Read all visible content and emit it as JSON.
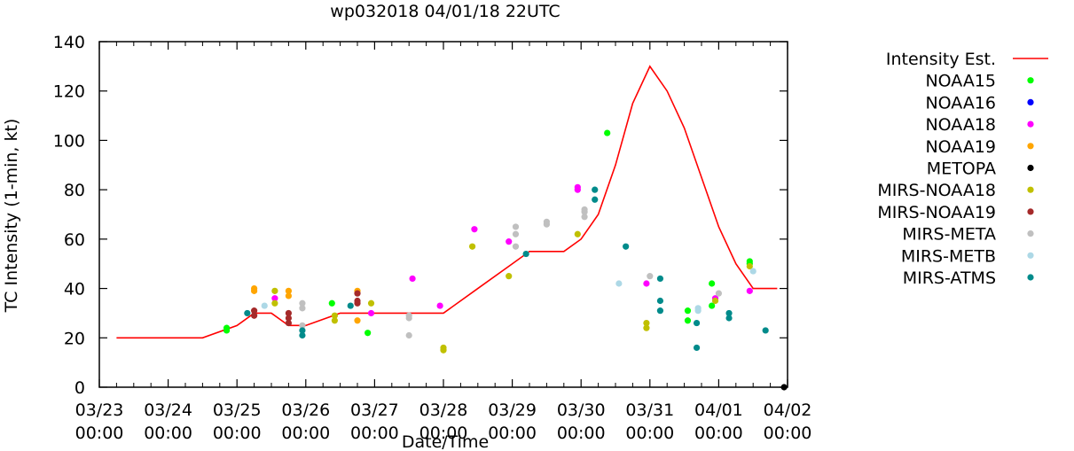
{
  "chart_data": {
    "type": "scatter",
    "title": "wp032018 04/01/18 22UTC",
    "xlabel": "Date/Time",
    "ylabel": "TC Intensity (1-min, kt)",
    "ylim": [
      0,
      140
    ],
    "yticks": [
      0,
      20,
      40,
      60,
      80,
      100,
      120,
      140
    ],
    "xlim": [
      0,
      10
    ],
    "xticks": [
      {
        "x": 0,
        "line1": "03/23",
        "line2": "00:00"
      },
      {
        "x": 1,
        "line1": "03/24",
        "line2": "00:00"
      },
      {
        "x": 2,
        "line1": "03/25",
        "line2": "00:00"
      },
      {
        "x": 3,
        "line1": "03/26",
        "line2": "00:00"
      },
      {
        "x": 4,
        "line1": "03/27",
        "line2": "00:00"
      },
      {
        "x": 5,
        "line1": "03/28",
        "line2": "00:00"
      },
      {
        "x": 6,
        "line1": "03/29",
        "line2": "00:00"
      },
      {
        "x": 7,
        "line1": "03/30",
        "line2": "00:00"
      },
      {
        "x": 8,
        "line1": "03/31",
        "line2": "00:00"
      },
      {
        "x": 9,
        "line1": "04/01",
        "line2": "00:00"
      },
      {
        "x": 10,
        "line1": "04/02",
        "line2": "00:00"
      }
    ],
    "x_unit": "days since 03/23 00:00",
    "intensity_line": {
      "name": "Intensity Est.",
      "color": "#ff0000",
      "x": [
        0.25,
        1.5,
        2.0,
        2.25,
        2.5,
        2.75,
        3.0,
        3.5,
        4.0,
        4.5,
        5.0,
        5.5,
        6.0,
        6.25,
        6.5,
        6.75,
        7.0,
        7.25,
        7.5,
        7.75,
        8.0,
        8.25,
        8.5,
        8.75,
        9.0,
        9.25,
        9.5,
        9.75
      ],
      "y": [
        20,
        20,
        25,
        30,
        30,
        25,
        25,
        30,
        30,
        30,
        30,
        40,
        50,
        55,
        55,
        55,
        60,
        70,
        90,
        115,
        130,
        120,
        105,
        85,
        65,
        50,
        40,
        40
      ],
      "x_end": 9.85
    },
    "series": [
      {
        "name": "NOAA15",
        "color": "#00ff00",
        "points": [
          [
            1.85,
            23
          ],
          [
            1.85,
            24
          ],
          [
            3.38,
            34
          ],
          [
            3.9,
            22
          ],
          [
            7.38,
            103
          ],
          [
            8.55,
            31
          ],
          [
            8.55,
            27
          ],
          [
            8.9,
            33
          ],
          [
            8.9,
            42
          ],
          [
            9.45,
            51
          ],
          [
            9.45,
            50
          ]
        ]
      },
      {
        "name": "NOAA16",
        "color": "#0000ff",
        "points": []
      },
      {
        "name": "NOAA18",
        "color": "#ff00ff",
        "points": [
          [
            2.55,
            36
          ],
          [
            3.95,
            30
          ],
          [
            4.55,
            44
          ],
          [
            4.95,
            33
          ],
          [
            5.45,
            64
          ],
          [
            5.95,
            59
          ],
          [
            6.95,
            81
          ],
          [
            6.95,
            80
          ],
          [
            7.95,
            42
          ],
          [
            8.95,
            36
          ],
          [
            9.45,
            39
          ]
        ]
      },
      {
        "name": "NOAA19",
        "color": "#ffa500",
        "points": [
          [
            2.25,
            40
          ],
          [
            2.25,
            39
          ],
          [
            2.75,
            39
          ],
          [
            2.75,
            37
          ],
          [
            3.75,
            39
          ],
          [
            3.75,
            27
          ]
        ]
      },
      {
        "name": "METOPA",
        "color": "#000000",
        "points": [
          [
            9.95,
            0
          ]
        ]
      },
      {
        "name": "MIRS-NOAA18",
        "color": "#c0c000",
        "points": [
          [
            2.55,
            39
          ],
          [
            2.55,
            34
          ],
          [
            3.42,
            27
          ],
          [
            3.42,
            29
          ],
          [
            3.95,
            34
          ],
          [
            5.0,
            15
          ],
          [
            5.0,
            16
          ],
          [
            5.42,
            57
          ],
          [
            5.95,
            45
          ],
          [
            6.95,
            62
          ],
          [
            7.95,
            26
          ],
          [
            7.95,
            24
          ],
          [
            8.95,
            35
          ],
          [
            9.45,
            49
          ]
        ]
      },
      {
        "name": "MIRS-NOAA19",
        "color": "#a52a2a",
        "points": [
          [
            2.25,
            31
          ],
          [
            2.25,
            29
          ],
          [
            2.75,
            30
          ],
          [
            2.75,
            28
          ],
          [
            2.75,
            26
          ],
          [
            3.75,
            38
          ],
          [
            3.75,
            35
          ],
          [
            3.75,
            34
          ]
        ]
      },
      {
        "name": "MIRS-META",
        "color": "#c0c0c0",
        "points": [
          [
            2.95,
            34
          ],
          [
            2.95,
            32
          ],
          [
            2.95,
            25
          ],
          [
            4.5,
            29
          ],
          [
            4.5,
            28
          ],
          [
            4.5,
            21
          ],
          [
            6.05,
            65
          ],
          [
            6.05,
            62
          ],
          [
            6.05,
            57
          ],
          [
            6.5,
            67
          ],
          [
            6.5,
            66
          ],
          [
            7.05,
            72
          ],
          [
            7.05,
            71
          ],
          [
            7.05,
            69
          ],
          [
            8.0,
            45
          ],
          [
            9.0,
            38
          ]
        ]
      },
      {
        "name": "MIRS-METB",
        "color": "#add8e6",
        "points": [
          [
            2.4,
            33
          ],
          [
            7.55,
            42
          ],
          [
            8.7,
            32
          ],
          [
            8.7,
            31
          ],
          [
            9.5,
            47
          ]
        ]
      },
      {
        "name": "MIRS-ATMS",
        "color": "#008b8b",
        "points": [
          [
            2.15,
            30
          ],
          [
            2.95,
            23
          ],
          [
            2.95,
            21
          ],
          [
            3.65,
            33
          ],
          [
            6.2,
            54
          ],
          [
            7.2,
            80
          ],
          [
            7.2,
            76
          ],
          [
            7.65,
            57
          ],
          [
            8.15,
            44
          ],
          [
            8.15,
            35
          ],
          [
            8.15,
            31
          ],
          [
            8.68,
            26
          ],
          [
            8.68,
            16
          ],
          [
            9.15,
            30
          ],
          [
            9.15,
            28
          ],
          [
            9.68,
            23
          ]
        ]
      }
    ]
  }
}
